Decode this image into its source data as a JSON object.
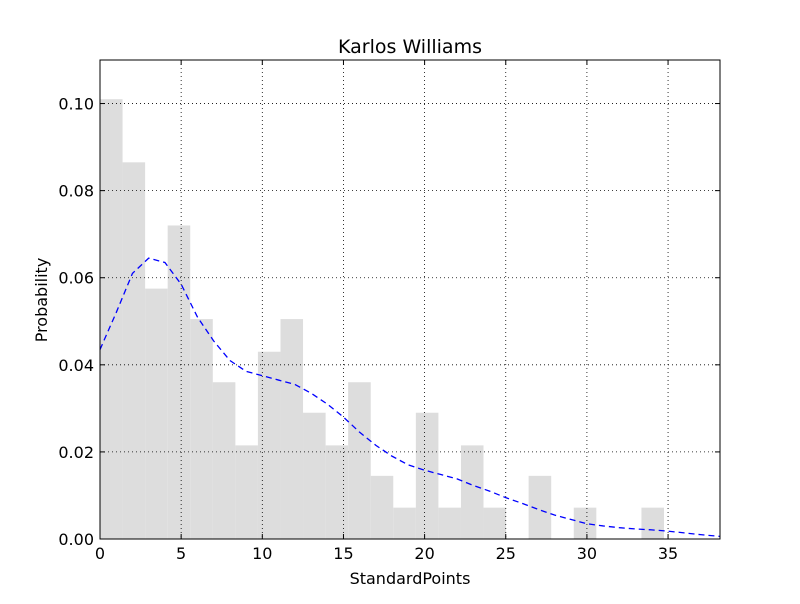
{
  "chart_data": {
    "type": "bar",
    "title": "Karlos Williams",
    "xlabel": "StandardPoints",
    "ylabel": "Probability",
    "xlim": [
      0,
      38.2
    ],
    "ylim": [
      0,
      0.11
    ],
    "xticks": [
      0,
      5,
      10,
      15,
      20,
      25,
      30,
      35
    ],
    "xtick_labels": [
      "0",
      "5",
      "10",
      "15",
      "20",
      "25",
      "30",
      "35"
    ],
    "yticks": [
      0.0,
      0.02,
      0.04,
      0.06,
      0.08,
      0.1
    ],
    "ytick_labels": [
      "0.00",
      "0.02",
      "0.04",
      "0.06",
      "0.08",
      "0.10"
    ],
    "grid": true,
    "bar_color": "#dddddd",
    "line_color": "#0000ff",
    "histogram": {
      "bin_edges": [
        0,
        1.39,
        2.78,
        4.17,
        5.56,
        6.95,
        8.34,
        9.73,
        11.12,
        12.51,
        13.9,
        15.29,
        16.68,
        18.07,
        19.46,
        20.85,
        22.24,
        23.63,
        25.02,
        26.41,
        27.8,
        29.19,
        30.58,
        31.97,
        33.36,
        34.75
      ],
      "values": [
        0.101,
        0.0865,
        0.0575,
        0.072,
        0.0505,
        0.036,
        0.0215,
        0.043,
        0.0505,
        0.029,
        0.0215,
        0.036,
        0.0145,
        0.0072,
        0.029,
        0.0072,
        0.0215,
        0.0072,
        0.0,
        0.0145,
        0.0,
        0.0072,
        0.0,
        0.0,
        0.0072
      ]
    },
    "density_line": {
      "style": "dashed",
      "x": [
        0,
        1,
        2,
        3,
        4,
        5,
        6,
        7,
        8,
        9,
        10,
        11,
        12,
        13,
        14,
        15,
        16,
        17,
        18,
        19,
        20,
        21,
        22,
        23,
        24,
        25,
        26,
        27,
        28,
        29,
        30,
        31,
        32,
        33,
        34,
        35,
        36,
        37,
        38.2
      ],
      "y": [
        0.0435,
        0.052,
        0.061,
        0.0645,
        0.0635,
        0.0585,
        0.051,
        0.0455,
        0.041,
        0.0385,
        0.0375,
        0.0365,
        0.0355,
        0.0335,
        0.031,
        0.028,
        0.0245,
        0.0215,
        0.019,
        0.017,
        0.0158,
        0.0148,
        0.0138,
        0.0123,
        0.011,
        0.0095,
        0.0082,
        0.0068,
        0.0055,
        0.0045,
        0.0035,
        0.003,
        0.0026,
        0.0023,
        0.0021,
        0.0018,
        0.0014,
        0.001,
        0.0006
      ]
    }
  }
}
